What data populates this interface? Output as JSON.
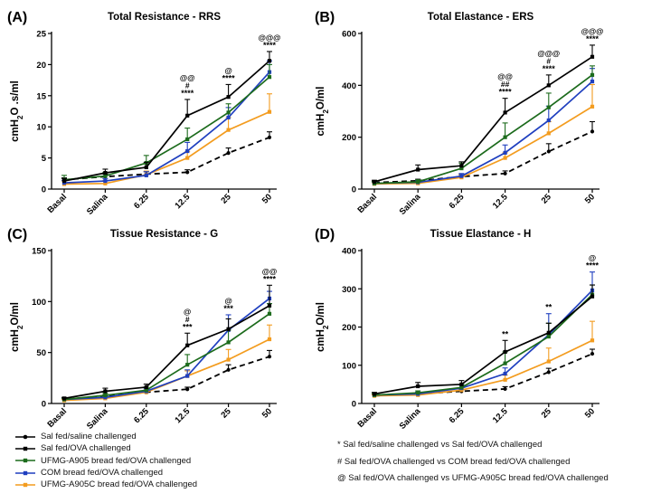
{
  "colors": {
    "sal_saline": "#000000",
    "sal_ova": "#000000",
    "a905": "#1c6b1c",
    "com": "#1f3fbf",
    "a905c": "#f39c1f"
  },
  "legend": [
    {
      "key": "sal_saline",
      "label": "Sal fed/saline challenged",
      "dash": false
    },
    {
      "key": "sal_ova",
      "label": "Sal fed/OVA challenged",
      "dash": false
    },
    {
      "key": "a905",
      "label": "UFMG-A905 bread fed/OVA challenged",
      "dash": false
    },
    {
      "key": "com",
      "label": "COM bread fed/OVA challenged",
      "dash": false
    },
    {
      "key": "a905c",
      "label": "UFMG-A905C bread fed/OVA challenged",
      "dash": false
    }
  ],
  "notes": [
    "* Sal fed/saline challenged vs Sal fed/OVA challenged",
    "# Sal fed/OVA challenged vs COM bread fed/OVA challenged",
    "@ Sal fed/OVA challenged vs UFMG-A905C bread fed/OVA challenged"
  ],
  "chart_data": [
    {
      "type": "line",
      "panel": "(A)",
      "title": "Total Resistance - RRS",
      "ylabel_main": "cmH",
      "ylabel_sub": "2",
      "ylabel_rest": "O .s/ml",
      "categories": [
        "Basal",
        "Salina",
        "6.25",
        "12.5",
        "25",
        "50"
      ],
      "ylim": [
        0,
        25
      ],
      "yticks": [
        0,
        5,
        10,
        15,
        20,
        25
      ],
      "series": [
        {
          "key": "sal_saline",
          "name": "Sal fed/saline challenged",
          "dashed": true,
          "values": [
            1.5,
            2.0,
            2.4,
            2.7,
            5.8,
            8.3
          ],
          "err": [
            0.3,
            0.4,
            0.4,
            0.4,
            0.8,
            0.9
          ]
        },
        {
          "key": "a905c",
          "name": "UFMG-A905C bread fed/OVA challenged",
          "dashed": false,
          "values": [
            0.8,
            0.9,
            2.3,
            5.0,
            9.5,
            12.4
          ],
          "err": [
            0.5,
            0.5,
            0.6,
            1.0,
            2.0,
            2.9
          ]
        },
        {
          "key": "com",
          "name": "COM bread fed/OVA challenged",
          "dashed": false,
          "values": [
            1.0,
            1.3,
            2.2,
            6.1,
            11.5,
            18.8
          ],
          "err": [
            0.4,
            0.4,
            0.6,
            1.4,
            1.6,
            1.8
          ]
        },
        {
          "key": "a905",
          "name": "UFMG-A905 bread fed/OVA challenged",
          "dashed": false,
          "values": [
            1.5,
            2.1,
            4.2,
            8.0,
            12.3,
            18.0
          ],
          "err": [
            0.7,
            0.6,
            1.2,
            1.8,
            1.4,
            2.0
          ]
        },
        {
          "key": "sal_ova",
          "name": "Sal fed/OVA challenged",
          "dashed": false,
          "values": [
            1.3,
            2.6,
            3.5,
            11.8,
            14.8,
            20.6
          ],
          "err": [
            0.4,
            0.6,
            0.8,
            2.6,
            2.0,
            1.5
          ]
        }
      ],
      "annotations": [
        {
          "category": "12.5",
          "lines": [
            "@@",
            "#",
            "****"
          ]
        },
        {
          "category": "25",
          "lines": [
            "@",
            "****"
          ]
        },
        {
          "category": "50",
          "lines": [
            "@@@",
            "****"
          ]
        }
      ]
    },
    {
      "type": "line",
      "panel": "(B)",
      "title": "Total Elastance - ERS",
      "ylabel_main": "cmH",
      "ylabel_sub": "2",
      "ylabel_rest": "O/ml",
      "categories": [
        "Basal",
        "Salina",
        "6.25",
        "12.5",
        "25",
        "50"
      ],
      "ylim": [
        0,
        600
      ],
      "yticks": [
        0,
        200,
        400,
        600
      ],
      "series": [
        {
          "key": "sal_saline",
          "name": "Sal fed/saline challenged",
          "dashed": true,
          "values": [
            25,
            32,
            48,
            60,
            145,
            222
          ],
          "err": [
            5,
            6,
            8,
            10,
            30,
            38
          ]
        },
        {
          "key": "a905c",
          "name": "UFMG-A905C bread fed/OVA challenged",
          "dashed": false,
          "values": [
            20,
            22,
            45,
            120,
            215,
            318
          ],
          "err": [
            5,
            6,
            8,
            20,
            45,
            85
          ]
        },
        {
          "key": "com",
          "name": "COM bread fed/OVA challenged",
          "dashed": false,
          "values": [
            22,
            26,
            50,
            140,
            265,
            415
          ],
          "err": [
            5,
            6,
            10,
            30,
            55,
            50
          ]
        },
        {
          "key": "a905",
          "name": "UFMG-A905 bread fed/OVA challenged",
          "dashed": false,
          "values": [
            22,
            28,
            80,
            200,
            315,
            440
          ],
          "err": [
            6,
            8,
            20,
            55,
            55,
            35
          ]
        },
        {
          "key": "sal_ova",
          "name": "Sal fed/OVA challenged",
          "dashed": false,
          "values": [
            28,
            75,
            90,
            295,
            400,
            510
          ],
          "err": [
            6,
            18,
            15,
            55,
            40,
            45
          ]
        }
      ],
      "annotations": [
        {
          "category": "12.5",
          "lines": [
            "@@",
            "##",
            "****"
          ]
        },
        {
          "category": "25",
          "lines": [
            "@@@",
            "#",
            "****"
          ]
        },
        {
          "category": "50",
          "lines": [
            "@@@",
            "****"
          ]
        }
      ]
    },
    {
      "type": "line",
      "panel": "(C)",
      "title": "Tissue Resistance - G",
      "ylabel_main": "cmH",
      "ylabel_sub": "2",
      "ylabel_rest": "O/ml",
      "categories": [
        "Basal",
        "Salina",
        "6.25",
        "12.5",
        "25",
        "50"
      ],
      "ylim": [
        0,
        150
      ],
      "yticks": [
        0,
        50,
        100,
        150
      ],
      "series": [
        {
          "key": "sal_saline",
          "name": "Sal fed/saline challenged",
          "dashed": true,
          "values": [
            4,
            7,
            11,
            14,
            33,
            46
          ],
          "err": [
            1,
            1.5,
            2,
            2,
            5,
            6
          ]
        },
        {
          "key": "a905c",
          "name": "UFMG-A905C bread fed/OVA challenged",
          "dashed": false,
          "values": [
            3,
            5,
            11,
            27,
            43,
            63
          ],
          "err": [
            1,
            1.5,
            2,
            5,
            10,
            14
          ]
        },
        {
          "key": "com",
          "name": "COM bread fed/OVA challenged",
          "dashed": false,
          "values": [
            4,
            6,
            12,
            27,
            72,
            103
          ],
          "err": [
            1,
            1.5,
            2.5,
            6,
            15,
            7
          ]
        },
        {
          "key": "a905",
          "name": "UFMG-A905 bread fed/OVA challenged",
          "dashed": false,
          "values": [
            4,
            8,
            13,
            38,
            60,
            88
          ],
          "err": [
            1,
            2,
            3,
            10,
            12,
            10
          ]
        },
        {
          "key": "sal_ova",
          "name": "Sal fed/OVA challenged",
          "dashed": false,
          "values": [
            5,
            12,
            16,
            57,
            73,
            96
          ],
          "err": [
            1,
            3,
            3,
            12,
            10,
            20
          ]
        }
      ],
      "annotations": [
        {
          "category": "12.5",
          "lines": [
            "@",
            "#",
            "***"
          ]
        },
        {
          "category": "25",
          "lines": [
            "@",
            "***"
          ]
        },
        {
          "category": "50",
          "lines": [
            "@@",
            "****"
          ]
        }
      ]
    },
    {
      "type": "line",
      "panel": "(D)",
      "title": "Tissue Elastance - H",
      "ylabel_main": "cmH",
      "ylabel_sub": "2",
      "ylabel_rest": "O/ml",
      "categories": [
        "Basal",
        "Salina",
        "6.25",
        "12.5",
        "25",
        "50"
      ],
      "ylim": [
        0,
        400
      ],
      "yticks": [
        0,
        100,
        200,
        300,
        400
      ],
      "series": [
        {
          "key": "sal_saline",
          "name": "Sal fed/saline challenged",
          "dashed": true,
          "values": [
            20,
            25,
            32,
            38,
            82,
            130
          ],
          "err": [
            3,
            4,
            5,
            6,
            10,
            12
          ]
        },
        {
          "key": "a905c",
          "name": "UFMG-A905C bread fed/OVA challenged",
          "dashed": false,
          "values": [
            20,
            22,
            35,
            62,
            110,
            165
          ],
          "err": [
            3,
            4,
            6,
            12,
            35,
            50
          ]
        },
        {
          "key": "com",
          "name": "COM bread fed/OVA challenged",
          "dashed": false,
          "values": [
            22,
            25,
            40,
            78,
            180,
            296
          ],
          "err": [
            4,
            5,
            8,
            15,
            55,
            48
          ]
        },
        {
          "key": "a905",
          "name": "UFMG-A905 bread fed/OVA challenged",
          "dashed": false,
          "values": [
            22,
            28,
            42,
            105,
            175,
            285
          ],
          "err": [
            4,
            5,
            8,
            30,
            35,
            25
          ]
        },
        {
          "key": "sal_ova",
          "name": "Sal fed/OVA challenged",
          "dashed": false,
          "values": [
            25,
            45,
            50,
            135,
            185,
            280
          ],
          "err": [
            4,
            10,
            10,
            30,
            25,
            30
          ]
        }
      ],
      "annotations": [
        {
          "category": "12.5",
          "lines": [
            "**"
          ]
        },
        {
          "category": "25",
          "lines": [
            "**"
          ]
        },
        {
          "category": "50",
          "lines": [
            "@",
            "****"
          ]
        }
      ]
    }
  ]
}
